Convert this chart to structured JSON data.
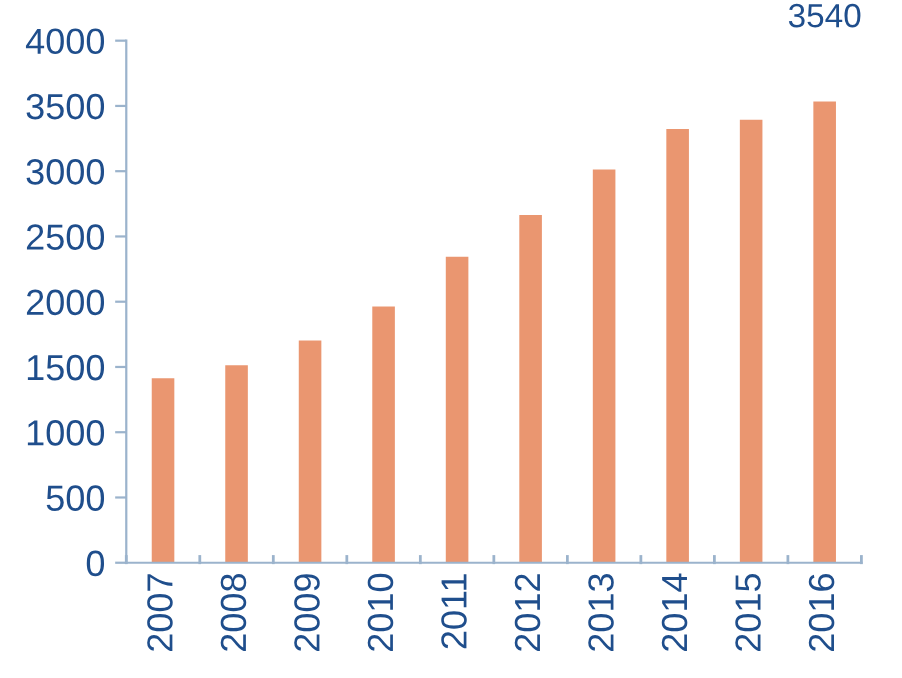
{
  "chart_data": {
    "type": "bar",
    "categories": [
      "2007",
      "2008",
      "2009",
      "2010",
      "2011",
      "2012",
      "2013",
      "2014",
      "2015",
      "2016"
    ],
    "values": [
      1420,
      1520,
      1710,
      1970,
      2350,
      2670,
      3020,
      3330,
      3400,
      3540
    ],
    "value_labels": [
      null,
      null,
      null,
      null,
      null,
      null,
      null,
      null,
      null,
      "3540"
    ],
    "color": "#ea9670",
    "ylim": [
      0,
      4000
    ],
    "yticks": [
      0,
      500,
      1000,
      1500,
      2000,
      2500,
      3000,
      3500,
      4000
    ],
    "grid": false,
    "legend": false
  }
}
